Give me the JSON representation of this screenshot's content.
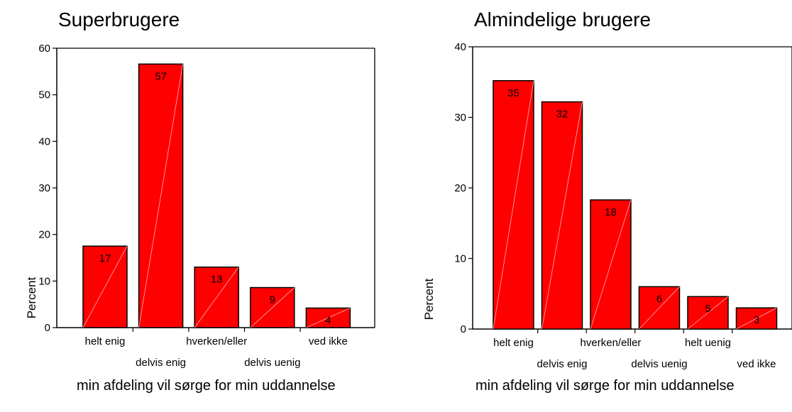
{
  "chart_data": [
    {
      "type": "bar",
      "title": "Superbrugere",
      "xlabel": "min afdeling vil sørge for min uddannelse",
      "ylabel": "Percent",
      "categories": [
        "helt enig",
        "delvis enig",
        "hverken/eller",
        "delvis uenig",
        "ved ikke"
      ],
      "values": [
        17.5,
        56.6,
        13.0,
        8.6,
        4.2
      ],
      "data_labels": [
        "17",
        "57",
        "13",
        "9",
        "4"
      ],
      "ylim": [
        0,
        60
      ],
      "yticks": [
        "0",
        "10",
        "20",
        "30",
        "40",
        "50",
        "60"
      ],
      "bar_color": "#ff0000",
      "grid": false
    },
    {
      "type": "bar",
      "title": "Almindelige brugere",
      "xlabel": "min afdeling vil sørge for min uddannelse",
      "ylabel": "Percent",
      "categories": [
        "helt enig",
        "delvis enig",
        "hverken/eller",
        "delvis uenig",
        "helt uenig",
        "ved ikke"
      ],
      "values": [
        35.2,
        32.2,
        18.3,
        6.0,
        4.6,
        3.0
      ],
      "data_labels": [
        "35",
        "32",
        "18",
        "6",
        "5",
        "3"
      ],
      "ylim": [
        0,
        40
      ],
      "yticks": [
        "0",
        "10",
        "20",
        "30",
        "40"
      ],
      "bar_color": "#ff0000",
      "grid": false
    }
  ]
}
